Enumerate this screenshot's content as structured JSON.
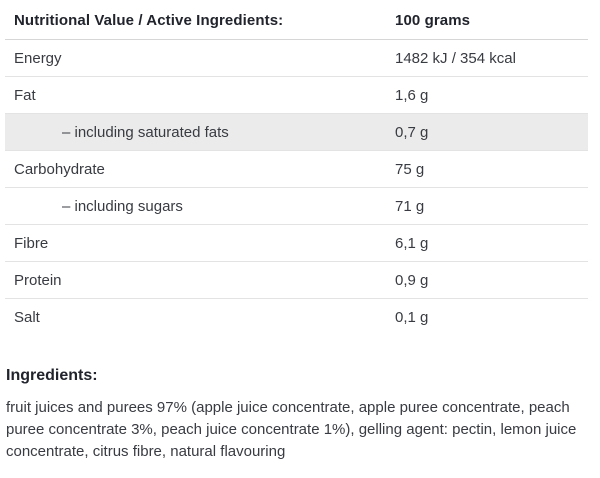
{
  "colors": {
    "page_bg": "#ffffff",
    "header_text": "#21242c",
    "row_text": "#383b41",
    "shaded_row_bg": "#ebebeb",
    "row_border": "#e3e3e3",
    "header_border": "#d6d6d6"
  },
  "table": {
    "header": {
      "label": "Nutritional Value / Active Ingredients:",
      "value": "100 grams"
    },
    "rows": [
      {
        "label": "Energy",
        "value": "1482 kJ / 354 kcal",
        "indent": false,
        "shaded": false
      },
      {
        "label": "Fat",
        "value": "1,6 g",
        "indent": false,
        "shaded": false
      },
      {
        "label": "– including saturated fats",
        "value": "0,7 g",
        "indent": true,
        "shaded": true
      },
      {
        "label": "Carbohydrate",
        "value": "75 g",
        "indent": false,
        "shaded": false
      },
      {
        "label": "– including sugars",
        "value": "71 g",
        "indent": true,
        "shaded": false
      },
      {
        "label": "Fibre",
        "value": "6,1 g",
        "indent": false,
        "shaded": false
      },
      {
        "label": "Protein",
        "value": "0,9 g",
        "indent": false,
        "shaded": false
      },
      {
        "label": "Salt",
        "value": "0,1 g",
        "indent": false,
        "shaded": false
      }
    ]
  },
  "ingredients": {
    "heading": "Ingredients:",
    "text": "fruit juices and purees 97% (apple juice concentrate, apple puree concentrate, peach puree concentrate 3%, peach juice concentrate 1%), gelling agent: pectin, lemon juice concentrate, citrus fibre, natural flavouring"
  }
}
